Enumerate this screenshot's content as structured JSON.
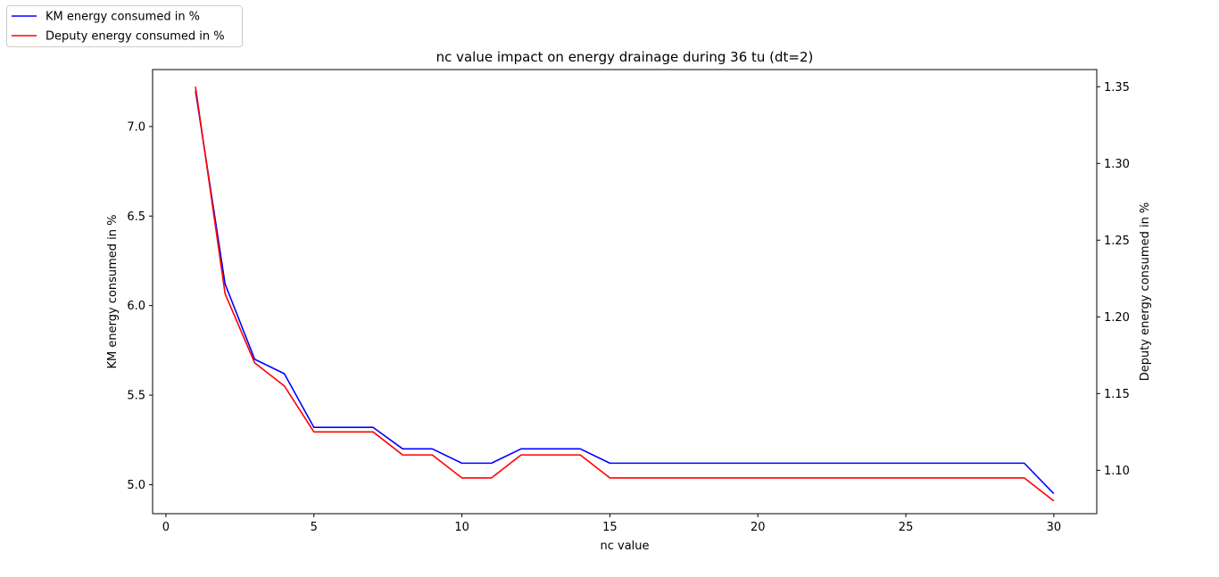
{
  "chart_data": {
    "type": "line",
    "title": "nc value impact on energy drainage during 36 tu (dt=2)",
    "xlabel": "nc value",
    "ylabel": "KM energy consumed in %",
    "ylabel_right": "Deputy energy consumed in %",
    "xlim": [
      -0.45,
      31.45
    ],
    "ylim": [
      4.838,
      7.318
    ],
    "ylim_right": [
      1.0717,
      1.3612
    ],
    "x_ticks": [
      0,
      5,
      10,
      15,
      20,
      25,
      30
    ],
    "y_ticks": [
      5.0,
      5.5,
      6.0,
      6.5,
      7.0
    ],
    "y_ticks_right": [
      1.1,
      1.15,
      1.2,
      1.25,
      1.3,
      1.35
    ],
    "x_tick_labels": [
      "0",
      "5",
      "10",
      "15",
      "20",
      "25",
      "30"
    ],
    "y_tick_labels": [
      "5.0",
      "5.5",
      "6.0",
      "6.5",
      "7.0"
    ],
    "y_tick_labels_right": [
      "1.10",
      "1.15",
      "1.20",
      "1.25",
      "1.30",
      "1.35"
    ],
    "grid": false,
    "legend_position": "outside-top-left",
    "x": [
      1,
      2,
      3,
      4,
      5,
      6,
      7,
      8,
      9,
      10,
      11,
      12,
      13,
      14,
      15,
      16,
      17,
      18,
      19,
      20,
      21,
      22,
      23,
      24,
      25,
      26,
      27,
      28,
      29,
      30
    ],
    "series": [
      {
        "name": "KM energy consumed in %",
        "axis": "left",
        "color": "#0000ff",
        "values": [
          7.2,
          6.12,
          5.7,
          5.62,
          5.32,
          5.32,
          5.32,
          5.2,
          5.2,
          5.12,
          5.12,
          5.2,
          5.2,
          5.2,
          5.12,
          5.12,
          5.12,
          5.12,
          5.12,
          5.12,
          5.12,
          5.12,
          5.12,
          5.12,
          5.12,
          5.12,
          5.12,
          5.12,
          5.12,
          4.95
        ]
      },
      {
        "name": "Deputy energy consumed in %",
        "axis": "right",
        "color": "#ff0000",
        "values": [
          1.35,
          1.215,
          1.17,
          1.155,
          1.125,
          1.125,
          1.125,
          1.11,
          1.11,
          1.095,
          1.095,
          1.11,
          1.11,
          1.11,
          1.095,
          1.095,
          1.095,
          1.095,
          1.095,
          1.095,
          1.095,
          1.095,
          1.095,
          1.095,
          1.095,
          1.095,
          1.095,
          1.095,
          1.095,
          1.08
        ]
      }
    ]
  }
}
